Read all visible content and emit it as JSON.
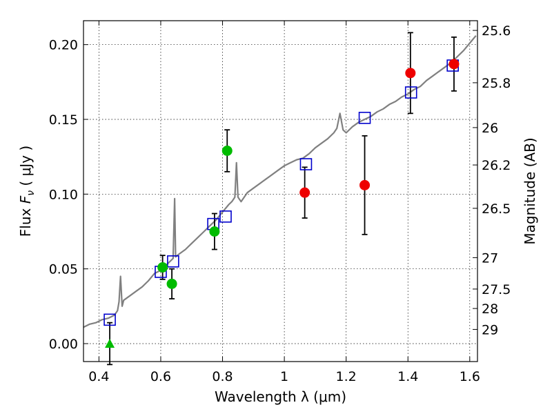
{
  "chart_data": {
    "type": "scatter",
    "xlabel": "Wavelength  λ (μm)",
    "ylabel_prefix": "Flux  ",
    "ylabel_var": "F",
    "ylabel_sub": "ν",
    "ylabel_suffix": "  ( μJy )",
    "y2label": "Magnitude (AB)",
    "xlim": [
      0.35,
      1.625
    ],
    "ylim": [
      -0.012,
      0.216
    ],
    "grid": true,
    "x_ticks": [
      0.4,
      0.6,
      0.8,
      1.0,
      1.2,
      1.4,
      1.6
    ],
    "x_tick_labels": [
      "0.4",
      "0.6",
      "0.8",
      "1",
      "1.2",
      "1.4",
      "1.6"
    ],
    "y_ticks": [
      0.0,
      0.05,
      0.1,
      0.15,
      0.2
    ],
    "y_tick_labels": [
      "0.00",
      "0.05",
      "0.10",
      "0.15",
      "0.20"
    ],
    "mag_ticks": [
      {
        "label": "25.6",
        "flux": 0.2095
      },
      {
        "label": "25.8",
        "flux": 0.1745
      },
      {
        "label": "26",
        "flux": 0.1445
      },
      {
        "label": "26.2",
        "flux": 0.1195
      },
      {
        "label": "26.5",
        "flux": 0.0905
      },
      {
        "label": "27",
        "flux": 0.0575
      },
      {
        "label": "27.5",
        "flux": 0.0365
      },
      {
        "label": "28",
        "flux": 0.0235
      },
      {
        "label": "29",
        "flux": 0.0095
      }
    ],
    "series": [
      {
        "marker": "line",
        "color": "#808080",
        "points": [
          [
            0.35,
            0.011
          ],
          [
            0.37,
            0.013
          ],
          [
            0.39,
            0.014
          ],
          [
            0.41,
            0.016
          ],
          [
            0.43,
            0.017
          ],
          [
            0.45,
            0.019
          ],
          [
            0.46,
            0.022
          ],
          [
            0.465,
            0.028
          ],
          [
            0.47,
            0.045
          ],
          [
            0.475,
            0.025
          ],
          [
            0.48,
            0.029
          ],
          [
            0.5,
            0.032
          ],
          [
            0.52,
            0.035
          ],
          [
            0.54,
            0.038
          ],
          [
            0.56,
            0.042
          ],
          [
            0.58,
            0.047
          ],
          [
            0.6,
            0.049
          ],
          [
            0.62,
            0.053
          ],
          [
            0.64,
            0.057
          ],
          [
            0.645,
            0.097
          ],
          [
            0.648,
            0.058
          ],
          [
            0.66,
            0.06
          ],
          [
            0.68,
            0.063
          ],
          [
            0.7,
            0.067
          ],
          [
            0.72,
            0.071
          ],
          [
            0.74,
            0.075
          ],
          [
            0.76,
            0.079
          ],
          [
            0.78,
            0.083
          ],
          [
            0.8,
            0.088
          ],
          [
            0.82,
            0.093
          ],
          [
            0.83,
            0.095
          ],
          [
            0.84,
            0.098
          ],
          [
            0.845,
            0.121
          ],
          [
            0.85,
            0.098
          ],
          [
            0.86,
            0.095
          ],
          [
            0.88,
            0.101
          ],
          [
            0.9,
            0.104
          ],
          [
            0.92,
            0.107
          ],
          [
            0.94,
            0.11
          ],
          [
            0.96,
            0.113
          ],
          [
            0.98,
            0.116
          ],
          [
            1.0,
            0.119
          ],
          [
            1.02,
            0.121
          ],
          [
            1.04,
            0.123
          ],
          [
            1.06,
            0.124
          ],
          [
            1.08,
            0.127
          ],
          [
            1.1,
            0.131
          ],
          [
            1.12,
            0.134
          ],
          [
            1.14,
            0.137
          ],
          [
            1.16,
            0.141
          ],
          [
            1.17,
            0.144
          ],
          [
            1.18,
            0.154
          ],
          [
            1.19,
            0.143
          ],
          [
            1.2,
            0.141
          ],
          [
            1.22,
            0.145
          ],
          [
            1.24,
            0.148
          ],
          [
            1.26,
            0.15
          ],
          [
            1.28,
            0.152
          ],
          [
            1.3,
            0.155
          ],
          [
            1.32,
            0.157
          ],
          [
            1.34,
            0.16
          ],
          [
            1.36,
            0.162
          ],
          [
            1.38,
            0.165
          ],
          [
            1.4,
            0.167
          ],
          [
            1.42,
            0.17
          ],
          [
            1.44,
            0.172
          ],
          [
            1.46,
            0.176
          ],
          [
            1.48,
            0.179
          ],
          [
            1.5,
            0.182
          ],
          [
            1.52,
            0.185
          ],
          [
            1.54,
            0.188
          ],
          [
            1.56,
            0.192
          ],
          [
            1.58,
            0.196
          ],
          [
            1.6,
            0.201
          ],
          [
            1.62,
            0.206
          ]
        ]
      },
      {
        "marker": "square",
        "color": "#0000cc",
        "points": [
          [
            0.435,
            0.016
          ],
          [
            0.6,
            0.048
          ],
          [
            0.64,
            0.055
          ],
          [
            0.77,
            0.08
          ],
          [
            0.81,
            0.085
          ],
          [
            1.07,
            0.12
          ],
          [
            1.26,
            0.151
          ],
          [
            1.41,
            0.168
          ],
          [
            1.545,
            0.186
          ]
        ]
      },
      {
        "marker": "circle",
        "color": "#00bb00",
        "points": [
          [
            0.606,
            0.051
          ],
          [
            0.636,
            0.04
          ],
          [
            0.774,
            0.075
          ],
          [
            0.815,
            0.129
          ]
        ],
        "errors": [
          0.008,
          0.01,
          0.012,
          0.014
        ]
      },
      {
        "marker": "circle",
        "color": "#ee0000",
        "points": [
          [
            1.066,
            0.101
          ],
          [
            1.26,
            0.106
          ],
          [
            1.408,
            0.181
          ],
          [
            1.549,
            0.187
          ]
        ],
        "errors": [
          0.017,
          0.033,
          0.027,
          0.018
        ]
      },
      {
        "marker": "triangle",
        "color": "#00bb00",
        "points": [
          [
            0.435,
            0.0
          ]
        ],
        "errors": [
          0.014
        ]
      }
    ]
  }
}
